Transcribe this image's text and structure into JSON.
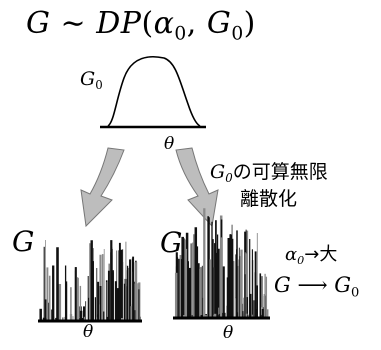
{
  "title": {
    "g": "G",
    "sim": " ∼ ",
    "dp": "DP",
    "open": "(",
    "alpha": "α",
    "alpha_sub": "0",
    "comma": ", ",
    "g0": "G",
    "g0_sub": "0",
    "close": ")"
  },
  "base_measure": {
    "label": "G",
    "label_sub": "0",
    "axis_label": "θ"
  },
  "discretization_note": {
    "symbol": "G",
    "symbol_sub": "0",
    "line1_text": "の可算無限",
    "line2_text": "離散化"
  },
  "left_sample": {
    "label": "G",
    "axis_label": "θ"
  },
  "right_sample": {
    "label": "G",
    "axis_label": "θ"
  },
  "alpha_note": {
    "alpha": "α",
    "alpha_sub": "0",
    "text": "→大"
  },
  "convergence_note": {
    "g": "G",
    "arrow": " ⟶ ",
    "g0": "G",
    "g0_sub": "0"
  },
  "colors": {
    "ink": "#000000",
    "arrow_fill": "#bdbdbd",
    "arrow_edge": "#777777",
    "stick_dark": "#111111",
    "stick_gray": "#8a8a8a"
  }
}
